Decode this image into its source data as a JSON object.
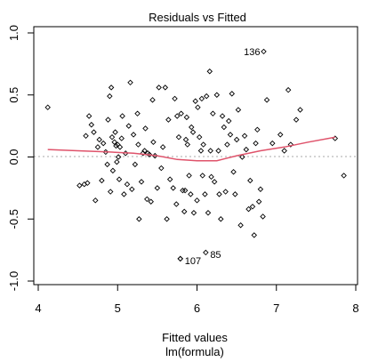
{
  "chart_data": {
    "type": "scatter",
    "title": "Residuals vs Fitted",
    "xlabel": "Fitted values",
    "subtitle": "lm(formula)",
    "ylabel": "",
    "xlim": [
      4,
      8
    ],
    "ylim": [
      -1.0,
      1.0
    ],
    "x_ticks": [
      "4",
      "5",
      "6",
      "7",
      "8"
    ],
    "y_ticks": [
      "-1.0",
      "-0.5",
      "0.0",
      "0.5",
      "1.0"
    ],
    "grid": false,
    "reference_line": {
      "y": 0,
      "style": "dotted",
      "color": "#aaaaaa"
    },
    "point_color": "#000000",
    "smooth_color": "#df536b",
    "points": [
      [
        4.12,
        0.4
      ],
      [
        4.52,
        -0.23
      ],
      [
        4.58,
        -0.22
      ],
      [
        4.62,
        -0.21
      ],
      [
        4.6,
        0.17
      ],
      [
        4.64,
        0.33
      ],
      [
        4.67,
        0.26
      ],
      [
        4.7,
        0.2
      ],
      [
        4.72,
        -0.35
      ],
      [
        4.75,
        0.08
      ],
      [
        4.77,
        0.14
      ],
      [
        4.8,
        -0.19
      ],
      [
        4.82,
        0.11
      ],
      [
        4.85,
        0.04
      ],
      [
        4.87,
        -0.06
      ],
      [
        4.88,
        0.3
      ],
      [
        4.9,
        0.49
      ],
      [
        4.92,
        0.56
      ],
      [
        4.91,
        -0.28
      ],
      [
        4.93,
        0.16
      ],
      [
        4.94,
        -0.11
      ],
      [
        4.96,
        0.12
      ],
      [
        4.97,
        0.2
      ],
      [
        4.98,
        0.09
      ],
      [
        4.99,
        -0.04
      ],
      [
        5.0,
        0.1
      ],
      [
        5.01,
        0.0
      ],
      [
        5.02,
        -0.18
      ],
      [
        5.03,
        0.08
      ],
      [
        5.05,
        0.15
      ],
      [
        5.06,
        0.33
      ],
      [
        5.08,
        -0.3
      ],
      [
        5.1,
        0.03
      ],
      [
        5.12,
        -0.22
      ],
      [
        5.14,
        0.25
      ],
      [
        5.16,
        0.6
      ],
      [
        5.18,
        -0.26
      ],
      [
        5.2,
        0.18
      ],
      [
        5.22,
        -0.06
      ],
      [
        5.25,
        0.35
      ],
      [
        5.26,
        0.1
      ],
      [
        5.27,
        -0.5
      ],
      [
        5.3,
        -0.2
      ],
      [
        5.32,
        0.03
      ],
      [
        5.34,
        0.05
      ],
      [
        5.35,
        0.23
      ],
      [
        5.37,
        -0.34
      ],
      [
        5.38,
        0.03
      ],
      [
        5.4,
        0.02
      ],
      [
        5.42,
        -0.36
      ],
      [
        5.44,
        0.46
      ],
      [
        5.45,
        0.12
      ],
      [
        5.47,
        0.01
      ],
      [
        5.5,
        -0.25
      ],
      [
        5.52,
        0.56
      ],
      [
        5.55,
        -0.09
      ],
      [
        5.57,
        0.08
      ],
      [
        5.6,
        0.56
      ],
      [
        5.62,
        -0.5
      ],
      [
        5.64,
        0.3
      ],
      [
        5.66,
        -0.18
      ],
      [
        5.7,
        -0.25
      ],
      [
        5.72,
        0.47
      ],
      [
        5.74,
        -0.38
      ],
      [
        5.75,
        0.33
      ],
      [
        5.77,
        0.16
      ],
      [
        5.79,
        -0.82
      ],
      [
        5.8,
        0.35
      ],
      [
        5.82,
        -0.27
      ],
      [
        5.84,
        -0.44
      ],
      [
        5.85,
        -0.27
      ],
      [
        5.86,
        0.14
      ],
      [
        5.87,
        0.32
      ],
      [
        5.88,
        0.1
      ],
      [
        5.9,
        -0.15
      ],
      [
        5.92,
        -0.3
      ],
      [
        5.93,
        0.24
      ],
      [
        5.95,
        0.2
      ],
      [
        5.96,
        -0.45
      ],
      [
        5.98,
        0.45
      ],
      [
        6.0,
        -0.35
      ],
      [
        6.01,
        0.4
      ],
      [
        6.03,
        0.16
      ],
      [
        6.05,
        0.05
      ],
      [
        6.06,
        0.47
      ],
      [
        6.07,
        -0.15
      ],
      [
        6.08,
        0.1
      ],
      [
        6.1,
        -0.3
      ],
      [
        6.12,
        0.49
      ],
      [
        6.14,
        -0.45
      ],
      [
        6.16,
        0.69
      ],
      [
        6.17,
        0.05
      ],
      [
        6.18,
        -0.16
      ],
      [
        6.2,
        0.35
      ],
      [
        6.22,
        -0.2
      ],
      [
        6.25,
        0.5
      ],
      [
        6.27,
        0.05
      ],
      [
        6.28,
        -0.3
      ],
      [
        6.3,
        -0.5
      ],
      [
        6.32,
        0.33
      ],
      [
        6.34,
        0.24
      ],
      [
        6.36,
        -0.28
      ],
      [
        6.38,
        0.1
      ],
      [
        6.4,
        0.29
      ],
      [
        6.42,
        0.18
      ],
      [
        6.44,
        0.51
      ],
      [
        6.46,
        -0.12
      ],
      [
        6.48,
        -0.3
      ],
      [
        6.5,
        0.14
      ],
      [
        6.52,
        0.38
      ],
      [
        6.55,
        -0.55
      ],
      [
        6.57,
        0.0
      ],
      [
        6.6,
        0.17
      ],
      [
        6.62,
        0.06
      ],
      [
        6.65,
        -0.42
      ],
      [
        6.67,
        -0.19
      ],
      [
        6.7,
        -0.4
      ],
      [
        6.72,
        -0.63
      ],
      [
        6.74,
        0.11
      ],
      [
        6.76,
        0.22
      ],
      [
        6.78,
        -0.36
      ],
      [
        6.8,
        -0.26
      ],
      [
        6.83,
        -0.48
      ],
      [
        6.88,
        0.46
      ],
      [
        6.95,
        0.11
      ],
      [
        7.05,
        0.18
      ],
      [
        7.1,
        0.05
      ],
      [
        7.15,
        0.54
      ],
      [
        7.18,
        0.1
      ],
      [
        7.25,
        0.3
      ],
      [
        7.3,
        0.38
      ],
      [
        7.74,
        0.15
      ],
      [
        7.85,
        -0.15
      ]
    ],
    "labeled_points": [
      {
        "label": "136",
        "x": 6.84,
        "y": 0.85
      },
      {
        "label": "107",
        "x": 5.79,
        "y": -0.82
      },
      {
        "label": "85",
        "x": 6.11,
        "y": -0.77
      }
    ],
    "smooth_curve": [
      [
        4.12,
        0.06
      ],
      [
        4.5,
        0.05
      ],
      [
        4.9,
        0.04
      ],
      [
        5.2,
        0.03
      ],
      [
        5.5,
        0.01
      ],
      [
        5.75,
        -0.02
      ],
      [
        6.0,
        -0.03
      ],
      [
        6.25,
        -0.03
      ],
      [
        6.5,
        0.01
      ],
      [
        6.8,
        0.05
      ],
      [
        7.1,
        0.08
      ],
      [
        7.4,
        0.12
      ],
      [
        7.74,
        0.16
      ]
    ]
  }
}
